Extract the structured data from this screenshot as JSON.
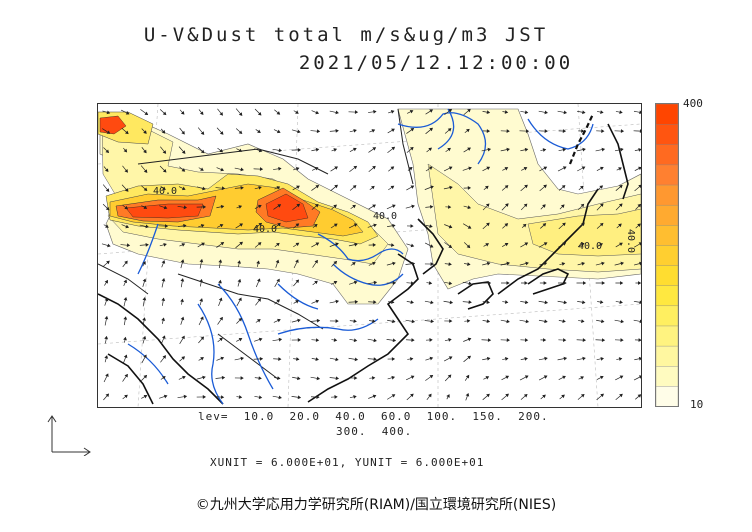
{
  "title": {
    "line1": "U-V&Dust total m/s&ug/m3 JST",
    "line2": "2021/05/12.12:00:00"
  },
  "colorbar": {
    "max_label": "400",
    "min_label": "10",
    "colors": [
      "#fffde8",
      "#fffbc0",
      "#fff7a0",
      "#fff380",
      "#ffef60",
      "#ffe840",
      "#ffdd30",
      "#ffcf30",
      "#ffbe30",
      "#ffaa30",
      "#ff9830",
      "#ff8030",
      "#ff6a20",
      "#ff5510",
      "#ff4500"
    ]
  },
  "legend": {
    "levels_line1": "lev=  10.0  20.0  40.0  60.0  100.  150.  200.",
    "levels_line2": "300.  400.",
    "units_line": "XUNIT = 6.000E+01, YUNIT = 6.000E+01"
  },
  "contour_labels": [
    "40.0",
    "40.0",
    "40.0",
    "40.0",
    "40.0"
  ],
  "copyright": "©九州大学応用力学研究所(RIAM)/国立環境研究所(NIES)",
  "palette": {
    "low": "#fff8c8",
    "mid": "#ffe860",
    "high": "#ff6a20",
    "peak": "#ff4500",
    "coast": "#111111",
    "river": "#1a5bd6"
  }
}
